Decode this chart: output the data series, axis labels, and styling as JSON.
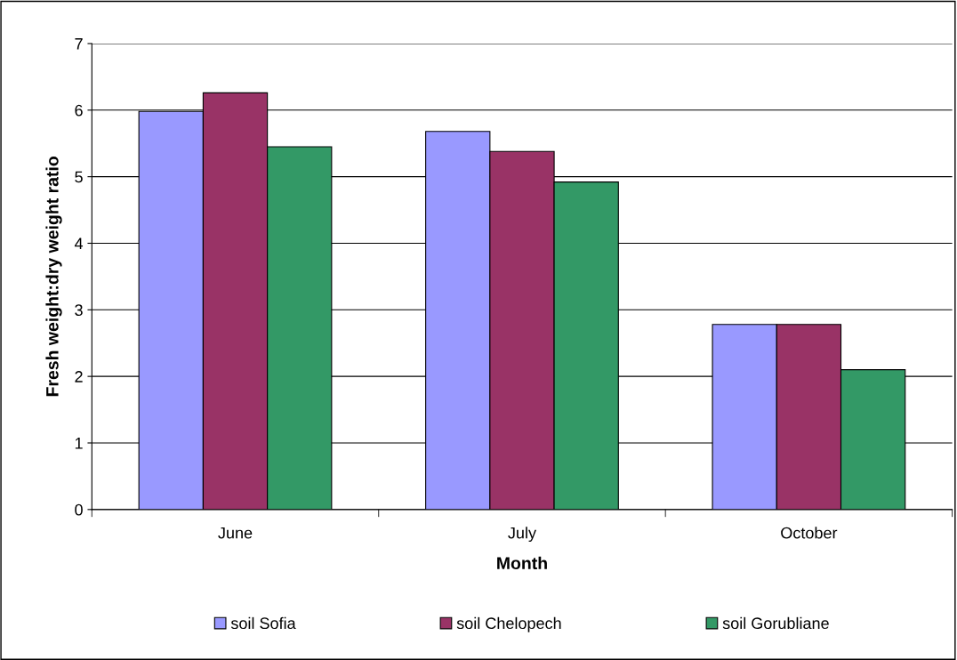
{
  "chart_data": {
    "type": "bar",
    "xlabel": "Month",
    "ylabel": "Fresh weight:dry weight ratio",
    "categories": [
      "June",
      "July",
      "October"
    ],
    "series": [
      {
        "name": "soil Sofia",
        "color": "#9999ff",
        "values": [
          5.98,
          5.68,
          2.78
        ]
      },
      {
        "name": "soil Chelopech",
        "color": "#993366",
        "values": [
          6.26,
          5.38,
          2.78
        ]
      },
      {
        "name": "soil Gorubliane",
        "color": "#339966",
        "values": [
          5.45,
          4.92,
          2.1
        ]
      }
    ],
    "ylim": [
      0,
      7
    ],
    "yticks": [
      0,
      1,
      2,
      3,
      4,
      5,
      6,
      7
    ],
    "grid": "y",
    "legend": "bottom"
  }
}
